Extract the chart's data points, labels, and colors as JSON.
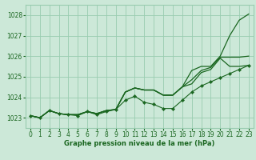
{
  "background_color": "#cce8d8",
  "grid_color": "#99ccb0",
  "line_color": "#1a6620",
  "xlabel": "Graphe pression niveau de la mer (hPa)",
  "xlim": [
    -0.5,
    23.5
  ],
  "ylim": [
    1022.5,
    1028.5
  ],
  "yticks": [
    1023,
    1024,
    1025,
    1026,
    1027,
    1028
  ],
  "xticks": [
    0,
    1,
    2,
    3,
    4,
    5,
    6,
    7,
    8,
    9,
    10,
    11,
    12,
    13,
    14,
    15,
    16,
    17,
    18,
    19,
    20,
    21,
    22,
    23
  ],
  "series": [
    {
      "data": [
        1023.1,
        1023.0,
        1023.35,
        1023.2,
        1023.15,
        1023.15,
        1023.3,
        1023.2,
        1023.35,
        1023.4,
        1024.25,
        1024.45,
        1024.35,
        1024.35,
        1024.1,
        1024.1,
        1024.5,
        1025.3,
        1025.5,
        1025.5,
        1026.0,
        1027.0,
        1027.75,
        1028.05
      ],
      "has_markers": false,
      "linewidth": 0.9
    },
    {
      "data": [
        1023.1,
        1023.0,
        1023.35,
        1023.2,
        1023.15,
        1023.15,
        1023.3,
        1023.2,
        1023.35,
        1023.4,
        1024.25,
        1024.45,
        1024.35,
        1024.35,
        1024.1,
        1024.1,
        1024.5,
        1024.85,
        1025.3,
        1025.45,
        1025.95,
        1025.95,
        1025.95,
        1026.0
      ],
      "has_markers": false,
      "linewidth": 0.9
    },
    {
      "data": [
        1023.1,
        1023.0,
        1023.35,
        1023.2,
        1023.15,
        1023.15,
        1023.3,
        1023.2,
        1023.35,
        1023.4,
        1024.25,
        1024.45,
        1024.35,
        1024.35,
        1024.1,
        1024.1,
        1024.5,
        1024.65,
        1025.2,
        1025.35,
        1025.9,
        1025.5,
        1025.5,
        1025.55
      ],
      "has_markers": false,
      "linewidth": 0.9
    },
    {
      "data": [
        1023.1,
        1023.0,
        1023.35,
        1023.2,
        1023.15,
        1023.1,
        1023.3,
        1023.15,
        1023.3,
        1023.4,
        1023.85,
        1024.05,
        1023.75,
        1023.65,
        1023.45,
        1023.45,
        1023.85,
        1024.25,
        1024.55,
        1024.75,
        1024.95,
        1025.15,
        1025.35,
        1025.55
      ],
      "has_markers": true,
      "linewidth": 0.8
    }
  ]
}
